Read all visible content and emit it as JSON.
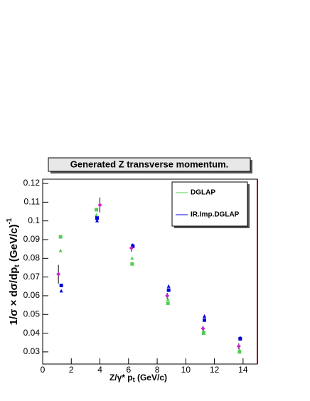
{
  "chart_data": {
    "type": "scatter",
    "title": "Generated Z transverse momentum.",
    "xlabel": {
      "main": "Z/γ* p",
      "sub": "t",
      "unit": " (GeV/c)"
    },
    "ylabel": {
      "main": "1/σ × dσ/dp",
      "sub": "t",
      "unit": "  (GeV/c)",
      "sup": "-1"
    },
    "xlim": [
      0,
      15
    ],
    "xticks": [
      0,
      2,
      4,
      6,
      8,
      10,
      12,
      14
    ],
    "ylim": [
      0.0235,
      0.1223
    ],
    "yticks": [
      0.03,
      0.04,
      0.05,
      0.06,
      0.07,
      0.08,
      0.09,
      0.1,
      0.11,
      0.12
    ],
    "legend": "upper right",
    "series": [
      {
        "name": "DGLAP",
        "color": "#55cc55",
        "marker": "square",
        "x": [
          1.25,
          3.75,
          6.25,
          8.75,
          11.25,
          13.75
        ],
        "values": [
          0.0915,
          0.106,
          0.077,
          0.056,
          0.04,
          0.03
        ]
      },
      {
        "color": "#55cc55",
        "marker": "triangle",
        "x": [
          1.25,
          3.75,
          6.25,
          8.75,
          11.25,
          13.75
        ],
        "values": [
          0.084,
          0.103,
          0.08,
          0.058,
          0.041,
          0.031
        ]
      },
      {
        "name": "IR.Imp.DGLAP",
        "color": "#0000dd",
        "marker": "square",
        "x": [
          1.3,
          3.8,
          6.3,
          8.8,
          11.3,
          13.8
        ],
        "values": [
          0.0655,
          0.1015,
          0.0865,
          0.063,
          0.047,
          0.037
        ]
      },
      {
        "color": "#0000dd",
        "marker": "triangle",
        "x": [
          1.3,
          3.8,
          6.3,
          8.8,
          11.3,
          13.8
        ],
        "values": [
          0.0625,
          0.1,
          0.087,
          0.065,
          0.049,
          0.0375
        ]
      },
      {
        "color": "#cc22cc",
        "marker": "diamond",
        "x": [
          1.1,
          4.0,
          6.2,
          8.7,
          11.2,
          13.7
        ],
        "values": [
          0.0715,
          0.1085,
          0.0855,
          0.06,
          0.0425,
          0.033
        ],
        "errors": [
          0.005,
          0.004,
          0.002,
          0.0015,
          0.0015,
          0.0015
        ]
      }
    ]
  }
}
